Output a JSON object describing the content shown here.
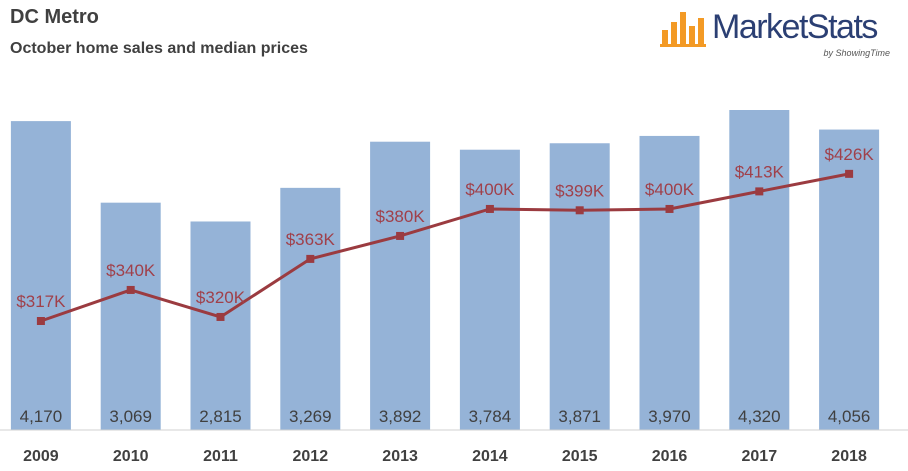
{
  "header": {
    "title": "DC Metro",
    "subtitle": "October home sales and median prices"
  },
  "logo": {
    "text_part1": "Market",
    "text_part2": "Stats",
    "byline": "by ShowingTime",
    "icon": "bar-chart-logo-icon",
    "color_orange": "#f39a25",
    "color_navy": "#2b3f73"
  },
  "chart_data": {
    "type": "bar",
    "categories": [
      "2009",
      "2010",
      "2011",
      "2012",
      "2013",
      "2014",
      "2015",
      "2016",
      "2017",
      "2018"
    ],
    "series": [
      {
        "type": "bar",
        "values": [
          4170,
          3069,
          2815,
          3269,
          3892,
          3784,
          3871,
          3970,
          4320,
          4056
        ],
        "labels": [
          "4,170",
          "3,069",
          "2,815",
          "3,269",
          "3,892",
          "3,784",
          "3,871",
          "3,970",
          "4,320",
          "4,056"
        ],
        "color": "#95b3d7"
      },
      {
        "type": "line",
        "values": [
          317,
          340,
          320,
          363,
          380,
          400,
          399,
          400,
          413,
          426
        ],
        "labels": [
          "$317K",
          "$340K",
          "$320K",
          "$363K",
          "$380K",
          "$400K",
          "$399K",
          "$400K",
          "$413K",
          "$426K"
        ],
        "color": "#9b3b40"
      }
    ],
    "grid": false,
    "legend": "none"
  }
}
